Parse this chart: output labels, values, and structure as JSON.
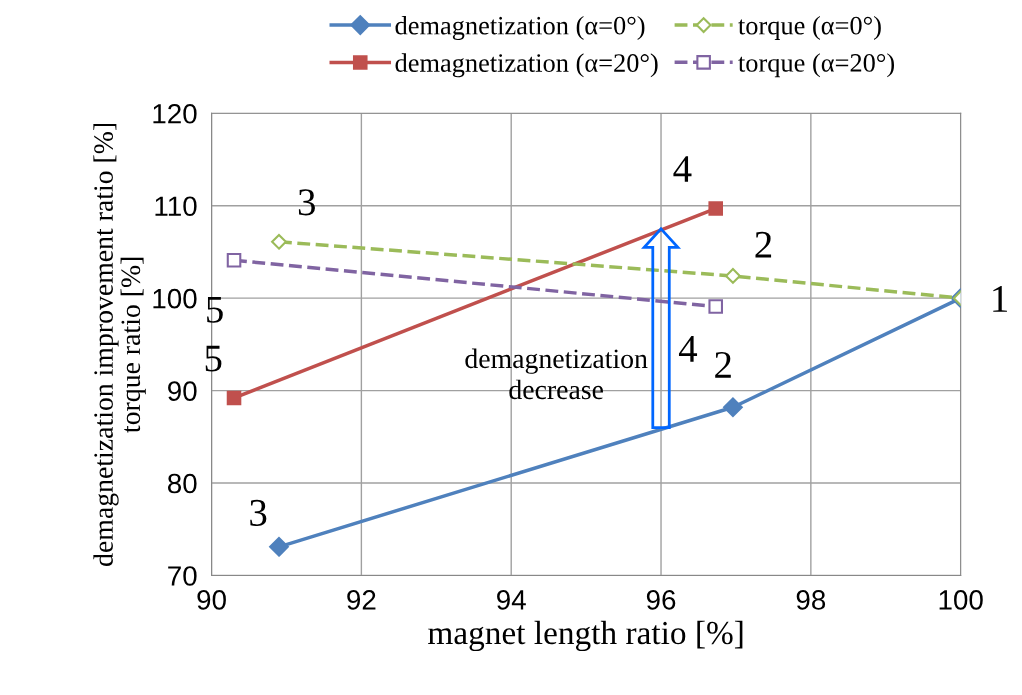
{
  "chart_data": {
    "type": "line",
    "xlabel": "magnet length ratio [%]",
    "ylabel": "demagnetization improvement ratio [%]\ntorque ratio [%]",
    "xlim": [
      90,
      100
    ],
    "xticks": [
      90,
      92,
      94,
      96,
      98,
      100
    ],
    "ylim": [
      70,
      120
    ],
    "yticks": [
      70,
      80,
      90,
      100,
      110,
      120
    ],
    "grid": true,
    "legend": "top",
    "series": [
      {
        "name": "demagnetization (α=0°)",
        "color": "#4f81bd",
        "x": [
          90.9,
          96.96,
          100
        ],
        "values": [
          73.1,
          88.2,
          100
        ],
        "marker": "diamond",
        "line_style": "solid"
      },
      {
        "name": "demagnetization (α=20°)",
        "color": "#c0504d",
        "x": [
          90.3,
          96.73
        ],
        "values": [
          89.2,
          109.7
        ],
        "marker": "square",
        "line_style": "solid"
      },
      {
        "name": "torque (α=0°)",
        "color": "#9bbb59",
        "x": [
          90.9,
          96.96,
          100
        ],
        "values": [
          106.1,
          102.4,
          100
        ],
        "marker": "diamond",
        "line_style": "dashed"
      },
      {
        "name": "torque (α=20°)",
        "color": "#8064a2",
        "x": [
          90.3,
          96.73
        ],
        "values": [
          104.1,
          99.1
        ],
        "marker": "square",
        "line_style": "dashed"
      }
    ],
    "annotations": [
      {
        "text": "3",
        "x": 90.9,
        "y": 73.1
      },
      {
        "text": "2",
        "x": 96.96,
        "y": 88.2
      },
      {
        "text": "1",
        "x": 100,
        "y": 100
      },
      {
        "text": "5",
        "x": 90.3,
        "y": 89.2
      },
      {
        "text": "4",
        "x": 96.73,
        "y": 109.7
      },
      {
        "text": "3",
        "x": 90.9,
        "y": 106.1
      },
      {
        "text": "2",
        "x": 96.96,
        "y": 102.4
      },
      {
        "text": "5",
        "x": 90.3,
        "y": 104.1
      },
      {
        "text": "4",
        "x": 96.73,
        "y": 99.1
      },
      "demagnetization\ndecrease"
    ]
  }
}
